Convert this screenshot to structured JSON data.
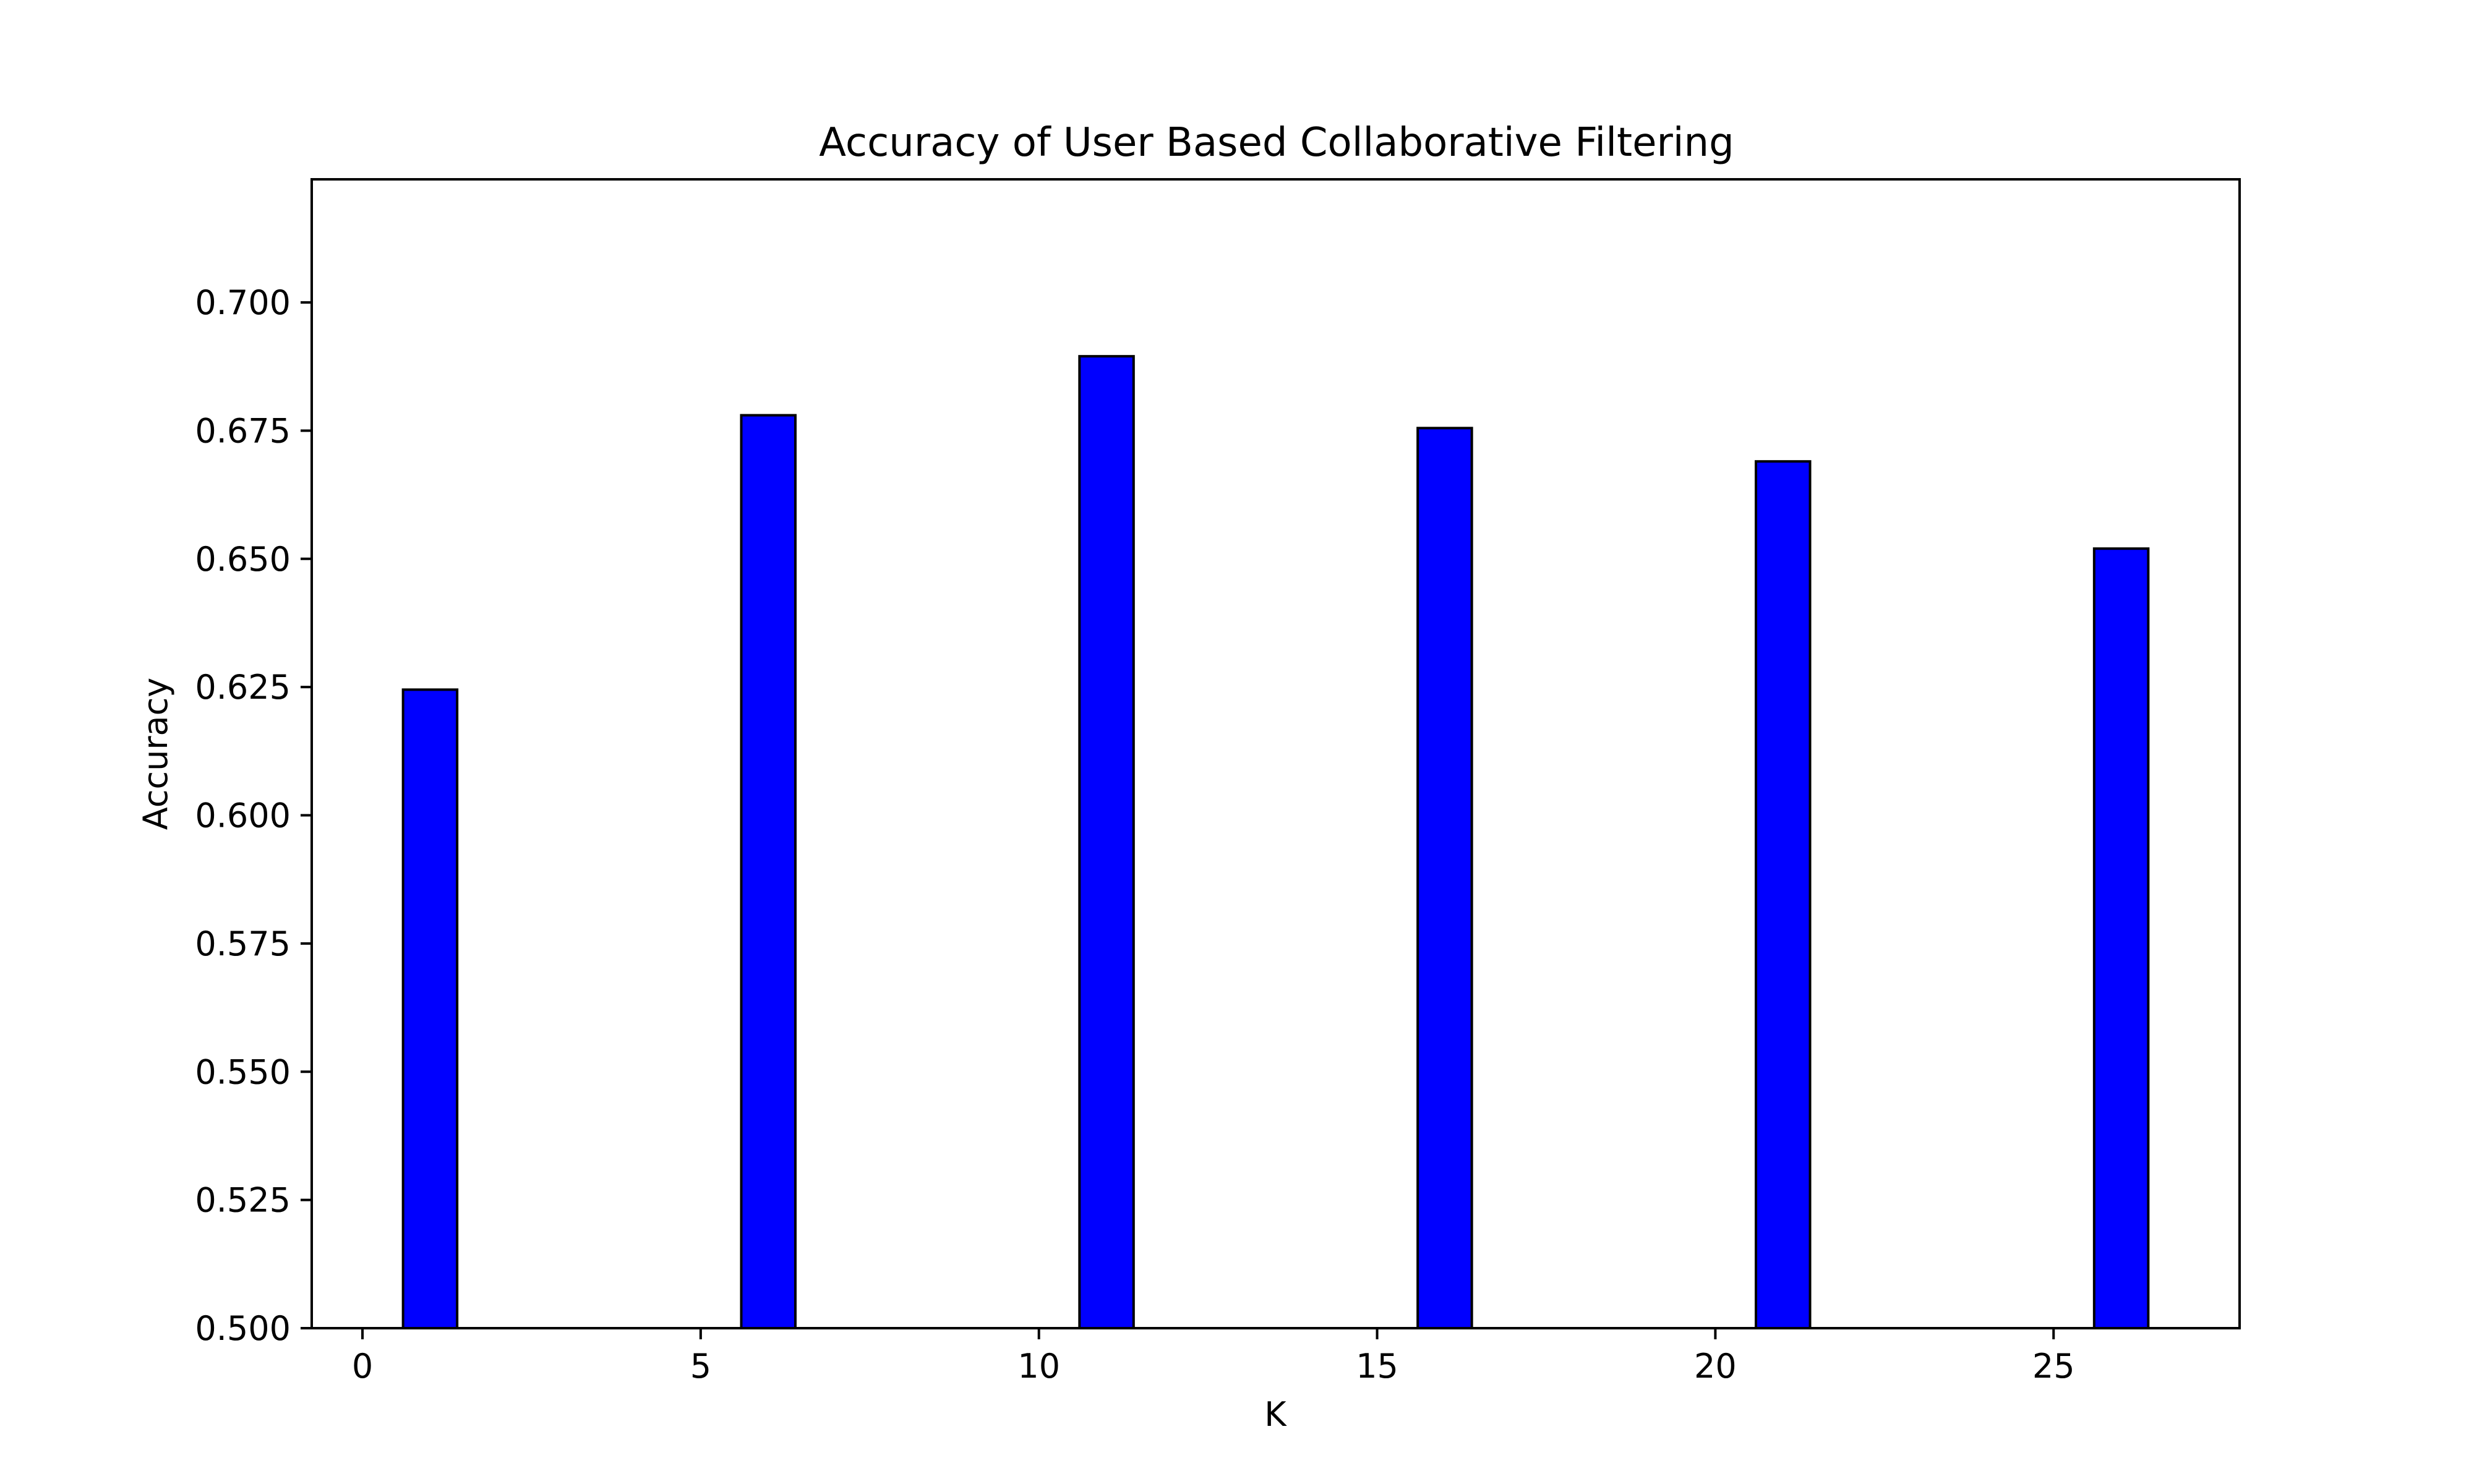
{
  "chart_data": {
    "type": "bar",
    "title": "Accuracy of User Based Collaborative Filtering",
    "xlabel": "K",
    "ylabel": "Accuracy",
    "x": [
      1,
      6,
      11,
      16,
      21,
      26
    ],
    "values": [
      0.6245,
      0.678,
      0.6895,
      0.6755,
      0.669,
      0.652
    ],
    "xlim": [
      -0.75,
      27.75
    ],
    "ylim": [
      0.5,
      0.724
    ],
    "bar_width": 0.8,
    "xticks": [
      0,
      5,
      10,
      15,
      20,
      25
    ],
    "xtick_labels": [
      "0",
      "5",
      "10",
      "15",
      "20",
      "25"
    ],
    "yticks": [
      0.5,
      0.525,
      0.55,
      0.575,
      0.6,
      0.625,
      0.65,
      0.675,
      0.7
    ],
    "ytick_labels": [
      "0.500",
      "0.525",
      "0.550",
      "0.575",
      "0.600",
      "0.625",
      "0.650",
      "0.675",
      "0.700"
    ],
    "bar_color": "#0000ff",
    "edge_color": "#000000",
    "grid": false,
    "legend": "none"
  }
}
